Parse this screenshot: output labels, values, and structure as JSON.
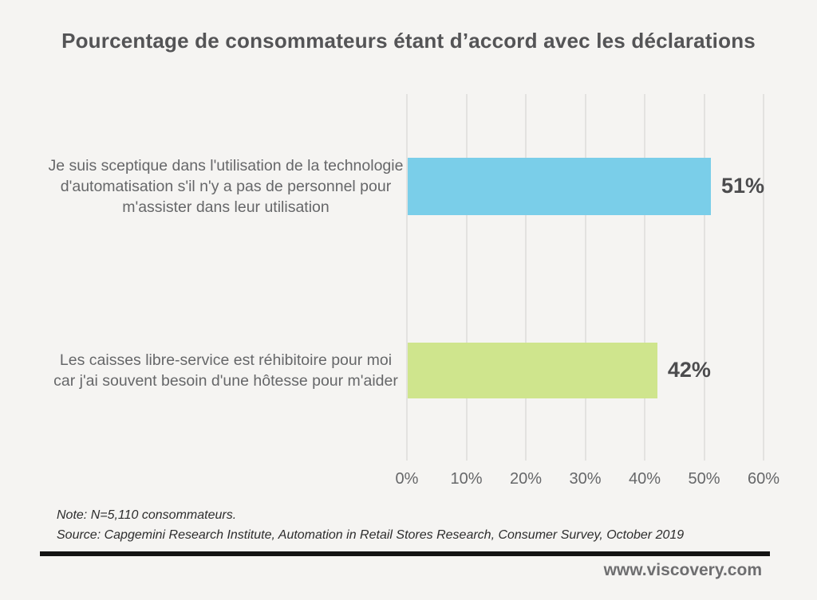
{
  "title": "Pourcentage de consommateurs étant d’accord avec les déclarations",
  "chart_data": {
    "type": "bar",
    "orientation": "horizontal",
    "categories": [
      "Je suis sceptique dans l'utilisation de la technologie d'automatisation s'il n'y a pas de personnel pour m'assister dans leur utilisation",
      "Les caisses libre-service est réhibitoire pour moi car j'ai souvent besoin d'une hôtesse pour m'aider"
    ],
    "values": [
      51,
      42
    ],
    "value_labels": [
      "51%",
      "42%"
    ],
    "bar_colors": [
      "#7ACEE9",
      "#CFE58D"
    ],
    "xlim": [
      0,
      60
    ],
    "x_ticks": [
      "0%",
      "10%",
      "20%",
      "30%",
      "40%",
      "50%",
      "60%"
    ],
    "x_tick_values": [
      0,
      10,
      20,
      30,
      40,
      50,
      60
    ],
    "grid": true,
    "legend": "none"
  },
  "note": "Note: N=5,110 consommateurs.",
  "source": "Source: Capgemini Research Institute, Automation in Retail Stores Research, Consumer Survey, October 2019",
  "footer": {
    "website": "www.viscovery.com"
  },
  "colors": {
    "background": "#F5F4F2",
    "title_text": "#545456",
    "label_text": "#666769",
    "value_text": "#4C4C4E",
    "gridline": "#E3E2E0",
    "divider": "#141414",
    "footer_text": "#6E6E70"
  }
}
